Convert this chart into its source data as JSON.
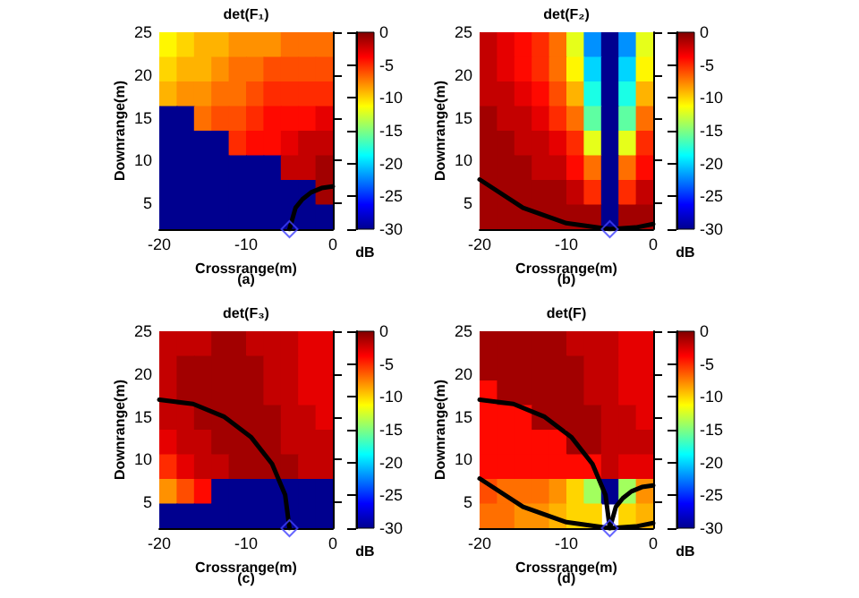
{
  "chart_data": [
    {
      "type": "heatmap",
      "title": "det(F₁)",
      "xlabel": "Crossrange(m)",
      "ylabel": "Downrange(m)",
      "clabel": "dB",
      "annotations": [
        "(a)"
      ],
      "x": [
        -19,
        -17,
        -15,
        -13,
        -11,
        -9,
        -7,
        -5,
        -3,
        -1
      ],
      "y": [
        23.5625,
        20.6875,
        17.8125,
        14.9375,
        12.0625,
        9.1875,
        6.3125,
        3.4375
      ],
      "cells": [
        [
          -11,
          -10,
          -9,
          -9,
          -8,
          -8,
          -8,
          -7,
          -7,
          -7
        ],
        [
          -10,
          -9,
          -9,
          -8,
          -7,
          -7,
          -6,
          -6,
          -6,
          -6
        ],
        [
          -9,
          -8,
          -8,
          -7,
          -7,
          -6,
          -5,
          -5,
          -5,
          -5
        ],
        [
          -30,
          -30,
          -7,
          -6,
          -6,
          -5,
          -4,
          -4,
          -4,
          -3
        ],
        [
          -30,
          -30,
          -30,
          -30,
          -5,
          -4,
          -4,
          -3,
          -2,
          -2
        ],
        [
          -30,
          -30,
          -30,
          -30,
          -30,
          -30,
          -30,
          -2,
          -2,
          -1
        ],
        [
          -30,
          -30,
          -30,
          -30,
          -30,
          -30,
          -30,
          -30,
          -30,
          -1
        ],
        [
          -30,
          -30,
          -30,
          -30,
          -30,
          -30,
          -30,
          -30,
          -30,
          -30
        ]
      ],
      "xlim": [
        -20,
        0
      ],
      "xticks": [
        -20,
        -10,
        0
      ],
      "ylim": [
        2,
        25
      ],
      "yticks": [
        5,
        10,
        15,
        20,
        25
      ],
      "clim": [
        -30,
        0
      ],
      "cticks": [
        0,
        -5,
        -10,
        -15,
        -20,
        -25,
        -30
      ],
      "series": [
        {
          "type": "line",
          "color": "#000000",
          "x": [
            -5,
            -4.3,
            -3.5,
            -2.5,
            -1.3,
            0
          ],
          "values": [
            2,
            4.5,
            5.5,
            6.3,
            6.8,
            7
          ]
        },
        {
          "type": "scatter",
          "marker": "diamond",
          "color": "#4040ff",
          "x": [
            -5
          ],
          "values": [
            2
          ]
        }
      ]
    },
    {
      "type": "heatmap",
      "title": "det(F₂)",
      "xlabel": "Crossrange(m)",
      "ylabel": "Downrange(m)",
      "clabel": "dB",
      "annotations": [
        "(b)"
      ],
      "x": [
        -19,
        -17,
        -15,
        -13,
        -11,
        -9,
        -7,
        -5,
        -3,
        -1
      ],
      "y": [
        23.5625,
        20.6875,
        17.8125,
        14.9375,
        12.0625,
        9.1875,
        6.3125,
        3.4375
      ],
      "cells": [
        [
          -2,
          -3,
          -4,
          -5,
          -7,
          -12,
          -22,
          -30,
          -22,
          -12
        ],
        [
          -2,
          -3,
          -4,
          -5,
          -7,
          -11,
          -20,
          -30,
          -20,
          -11
        ],
        [
          -2,
          -2,
          -3,
          -4,
          -6,
          -9,
          -18,
          -30,
          -18,
          -9
        ],
        [
          -1,
          -2,
          -2,
          -3,
          -5,
          -7,
          -16,
          -30,
          -16,
          -7
        ],
        [
          -1,
          -1,
          -2,
          -2,
          -3,
          -5,
          -12,
          -30,
          -12,
          -5
        ],
        [
          -1,
          -1,
          -1,
          -2,
          -2,
          -4,
          -7,
          -30,
          -7,
          -4
        ],
        [
          -1,
          -1,
          -1,
          -1,
          -1,
          -2,
          -5,
          -30,
          -5,
          -2
        ],
        [
          -1,
          -1,
          -1,
          -1,
          -1,
          -1,
          -1,
          -30,
          -1,
          -1
        ]
      ],
      "xlim": [
        -20,
        0
      ],
      "xticks": [
        -20,
        -10,
        0
      ],
      "ylim": [
        2,
        25
      ],
      "yticks": [
        5,
        10,
        15,
        20,
        25
      ],
      "clim": [
        -30,
        0
      ],
      "cticks": [
        0,
        -5,
        -10,
        -15,
        -20,
        -25,
        -30
      ],
      "series": [
        {
          "type": "line",
          "color": "#000000",
          "x": [
            -20,
            -15,
            -10,
            -5,
            -2,
            0
          ],
          "values": [
            7.8,
            4.5,
            2.7,
            2,
            2.2,
            2.6
          ]
        },
        {
          "type": "scatter",
          "marker": "diamond",
          "color": "#4040ff",
          "x": [
            -5
          ],
          "values": [
            2
          ]
        }
      ]
    },
    {
      "type": "heatmap",
      "title": "det(F₃)",
      "xlabel": "Crossrange(m)",
      "ylabel": "Downrange(m)",
      "clabel": "dB",
      "annotations": [
        "(c)"
      ],
      "x": [
        -19,
        -17,
        -15,
        -13,
        -11,
        -9,
        -7,
        -5,
        -3,
        -1
      ],
      "y": [
        23.5625,
        20.6875,
        17.8125,
        14.9375,
        12.0625,
        9.1875,
        6.3125,
        3.4375
      ],
      "cells": [
        [
          -2,
          -2,
          -2,
          -1,
          -1,
          -2,
          -2,
          -2,
          -3,
          -3
        ],
        [
          -2,
          -1,
          -1,
          -1,
          -1,
          -1,
          -2,
          -2,
          -3,
          -3
        ],
        [
          -2,
          -1,
          -1,
          -1,
          -1,
          -1,
          -2,
          -2,
          -3,
          -3
        ],
        [
          -2,
          -2,
          -1,
          -1,
          -1,
          -1,
          -1,
          -2,
          -2,
          -3
        ],
        [
          -3,
          -2,
          -2,
          -1,
          -1,
          -1,
          -1,
          -2,
          -2,
          -2
        ],
        [
          -5,
          -3,
          -2,
          -2,
          -1,
          -1,
          -1,
          -1,
          -2,
          -2
        ],
        [
          -8,
          -6,
          -4,
          -30,
          -30,
          -30,
          -30,
          -30,
          -30,
          -30
        ],
        [
          -30,
          -30,
          -30,
          -30,
          -30,
          -30,
          -30,
          -30,
          -30,
          -30
        ]
      ],
      "xlim": [
        -20,
        0
      ],
      "xticks": [
        -20,
        -10,
        0
      ],
      "ylim": [
        2,
        25
      ],
      "yticks": [
        5,
        10,
        15,
        20,
        25
      ],
      "clim": [
        -30,
        0
      ],
      "cticks": [
        0,
        -5,
        -10,
        -15,
        -20,
        -25,
        -30
      ],
      "series": [
        {
          "type": "line",
          "color": "#000000",
          "x": [
            -20,
            -16.1,
            -12.5,
            -9.4,
            -7,
            -5.5,
            -5
          ],
          "values": [
            17,
            16.5,
            15,
            12.6,
            9.5,
            5.9,
            2
          ]
        },
        {
          "type": "scatter",
          "marker": "diamond",
          "color": "#4040ff",
          "x": [
            -5
          ],
          "values": [
            2
          ]
        }
      ]
    },
    {
      "type": "heatmap",
      "title": "det(F)",
      "xlabel": "Crossrange(m)",
      "ylabel": "Downrange(m)",
      "clabel": "dB",
      "annotations": [
        "(d)"
      ],
      "x": [
        -19,
        -17,
        -15,
        -13,
        -11,
        -9,
        -7,
        -5,
        -3,
        -1
      ],
      "y": [
        23.5625,
        20.6875,
        17.8125,
        14.9375,
        12.0625,
        9.1875,
        6.3125,
        3.4375
      ],
      "cells": [
        [
          -1,
          -1,
          -1,
          -1,
          -1,
          -2,
          -2,
          -2,
          -3,
          -3
        ],
        [
          -1,
          -1,
          -1,
          -1,
          -1,
          -1,
          -2,
          -2,
          -3,
          -3
        ],
        [
          -4,
          -1,
          -1,
          -1,
          -1,
          -1,
          -2,
          -2,
          -3,
          -3
        ],
        [
          -4,
          -4,
          -4,
          -1,
          -1,
          -1,
          -1,
          -2,
          -2,
          -3
        ],
        [
          -4,
          -4,
          -4,
          -4,
          -4,
          -1,
          -1,
          -2,
          -2,
          -2
        ],
        [
          -4,
          -4,
          -4,
          -4,
          -4,
          -4,
          -4,
          -2,
          -3,
          -3
        ],
        [
          -6,
          -7,
          -7,
          -7,
          -8,
          -10,
          -14,
          -30,
          -14,
          -8
        ],
        [
          -7,
          -7,
          -8,
          -8,
          -9,
          -10,
          -10,
          null,
          -10,
          -9
        ]
      ],
      "xlim": [
        -20,
        0
      ],
      "xticks": [
        -20,
        -10,
        0
      ],
      "ylim": [
        2,
        25
      ],
      "yticks": [
        5,
        10,
        15,
        20,
        25
      ],
      "clim": [
        -30,
        0
      ],
      "cticks": [
        0,
        -5,
        -10,
        -15,
        -20,
        -25,
        -30
      ],
      "series": [
        {
          "type": "line",
          "color": "#000000",
          "x": [
            -20,
            -16.1,
            -12.5,
            -9.4,
            -7,
            -5.5,
            -5
          ],
          "values": [
            17,
            16.5,
            15,
            12.6,
            9.5,
            5.9,
            2
          ]
        },
        {
          "type": "line",
          "color": "#000000",
          "x": [
            -20,
            -15,
            -10,
            -5,
            -2,
            0
          ],
          "values": [
            7.8,
            4.5,
            2.7,
            2,
            2.2,
            2.6
          ]
        },
        {
          "type": "line",
          "color": "#000000",
          "x": [
            -5,
            -4.3,
            -3.5,
            -2.5,
            -1.3,
            0
          ],
          "values": [
            2,
            4.5,
            5.5,
            6.3,
            6.8,
            7
          ]
        },
        {
          "type": "scatter",
          "marker": "diamond",
          "color": "#4040ff",
          "x": [
            -5
          ],
          "values": [
            2
          ]
        }
      ]
    }
  ]
}
